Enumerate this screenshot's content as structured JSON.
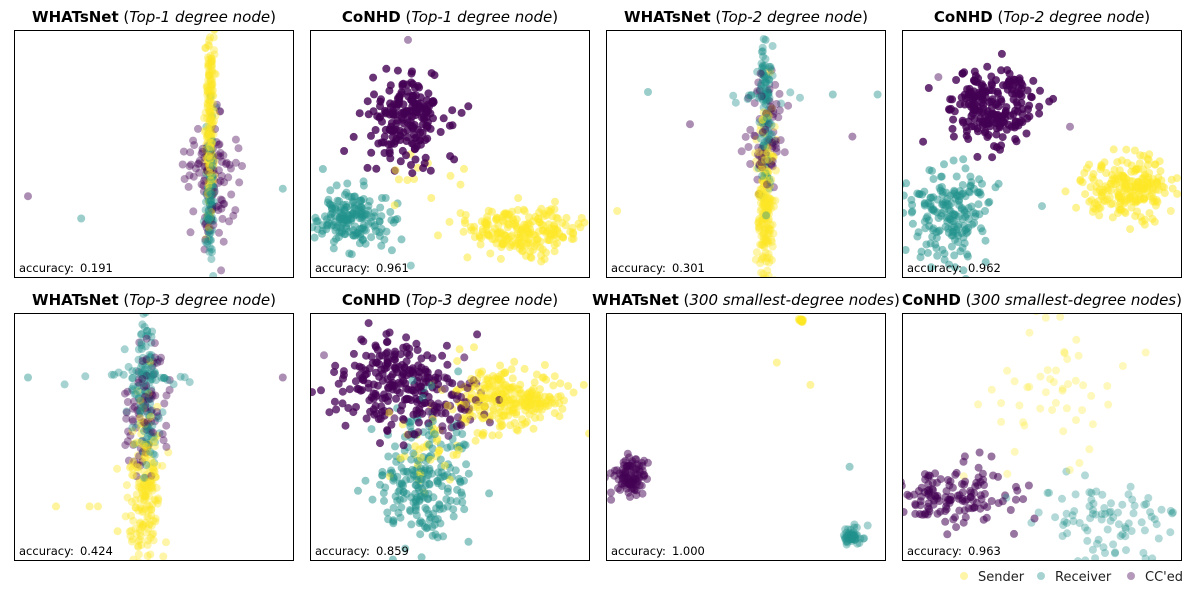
{
  "colors": {
    "sender": "#fde725",
    "receiver": "#21918c",
    "cced": "#440154"
  },
  "legend": {
    "position": "bottom-right",
    "items": [
      {
        "label": "Sender",
        "color": "#fde725"
      },
      {
        "label": "Receiver",
        "color": "#21918c"
      },
      {
        "label": "CC'ed",
        "color": "#440154"
      }
    ]
  },
  "chart_data": [
    {
      "type": "scatter",
      "title": {
        "method": "WHATsNet",
        "open": " (",
        "subset": "Top-1 degree node",
        "close": ")"
      },
      "accuracy_label": "accuracy:",
      "accuracy": "0.191",
      "xlim": [
        0,
        100
      ],
      "ylim": [
        0,
        100
      ],
      "clusters": [
        {
          "role": "cced",
          "cx": 70,
          "cy": 38,
          "sx": 4,
          "sy": 14,
          "n": 90,
          "alpha": 0.4
        },
        {
          "role": "cced",
          "cx": 70,
          "cy": 47,
          "sx": 6,
          "sy": 2,
          "n": 18,
          "alpha": 0.4
        },
        {
          "role": "receiver",
          "cx": 70,
          "cy": 35,
          "sx": 0.8,
          "sy": 14,
          "n": 110,
          "alpha": 0.4
        },
        {
          "role": "sender",
          "cx": 70,
          "cy": 58,
          "sx": 0.8,
          "sy": 18,
          "n": 170,
          "alpha": 0.4
        },
        {
          "role": "sender",
          "cx": 70,
          "cy": 85,
          "sx": 1,
          "sy": 7,
          "n": 30,
          "alpha": 0.4
        }
      ],
      "points": [
        {
          "role": "cced",
          "x": 5,
          "y": 33
        },
        {
          "role": "receiver",
          "x": 24,
          "y": 24
        },
        {
          "role": "receiver",
          "x": 96,
          "y": 36
        },
        {
          "role": "sender",
          "x": 70,
          "y": 97
        }
      ]
    },
    {
      "type": "scatter",
      "title": {
        "method": "CoNHD",
        "open": " (",
        "subset": "Top-1 degree node",
        "close": ")"
      },
      "accuracy_label": "accuracy:",
      "accuracy": "0.961",
      "xlim": [
        0,
        100
      ],
      "ylim": [
        0,
        100
      ],
      "clusters": [
        {
          "role": "cced",
          "cx": 34,
          "cy": 64,
          "sx": 7,
          "sy": 9,
          "n": 200,
          "alpha": 0.8
        },
        {
          "role": "receiver",
          "cx": 16,
          "cy": 24,
          "sx": 7,
          "sy": 6,
          "n": 180,
          "alpha": 0.5
        },
        {
          "role": "sender",
          "cx": 76,
          "cy": 19,
          "sx": 10,
          "sy": 5,
          "n": 220,
          "alpha": 0.5
        },
        {
          "role": "sender",
          "cx": 40,
          "cy": 40,
          "sx": 6,
          "sy": 6,
          "n": 12,
          "alpha": 0.5
        }
      ],
      "points": [
        {
          "role": "cced",
          "x": 35,
          "y": 96
        },
        {
          "role": "receiver",
          "x": 36,
          "y": 5
        }
      ]
    },
    {
      "type": "scatter",
      "title": {
        "method": "WHATsNet",
        "open": " (",
        "subset": "Top-2 degree node",
        "close": ")"
      },
      "accuracy_label": "accuracy:",
      "accuracy": "0.301",
      "xlim": [
        0,
        100
      ],
      "ylim": [
        0,
        100
      ],
      "clusters": [
        {
          "role": "cced",
          "cx": 57,
          "cy": 60,
          "sx": 3,
          "sy": 12,
          "n": 70,
          "alpha": 0.4
        },
        {
          "role": "receiver",
          "cx": 57,
          "cy": 68,
          "sx": 1.2,
          "sy": 16,
          "n": 110,
          "alpha": 0.4
        },
        {
          "role": "receiver",
          "cx": 54,
          "cy": 74,
          "sx": 6,
          "sy": 2,
          "n": 18,
          "alpha": 0.4
        },
        {
          "role": "sender",
          "cx": 57,
          "cy": 30,
          "sx": 1.5,
          "sy": 18,
          "n": 200,
          "alpha": 0.4
        }
      ],
      "points": [
        {
          "role": "receiver",
          "x": 15,
          "y": 75
        },
        {
          "role": "receiver",
          "x": 81,
          "y": 74
        },
        {
          "role": "receiver",
          "x": 97,
          "y": 74
        },
        {
          "role": "receiver",
          "x": 57,
          "y": 96
        },
        {
          "role": "cced",
          "x": 88,
          "y": 57
        },
        {
          "role": "cced",
          "x": 30,
          "y": 62
        },
        {
          "role": "sender",
          "x": 4,
          "y": 27
        }
      ]
    },
    {
      "type": "scatter",
      "title": {
        "method": "CoNHD",
        "open": " (",
        "subset": "Top-2 degree node",
        "close": ")"
      },
      "accuracy_label": "accuracy:",
      "accuracy": "0.962",
      "xlim": [
        0,
        100
      ],
      "ylim": [
        0,
        100
      ],
      "clusters": [
        {
          "role": "cced",
          "cx": 33,
          "cy": 70,
          "sx": 8,
          "sy": 8,
          "n": 220,
          "alpha": 0.8
        },
        {
          "role": "receiver",
          "cx": 17,
          "cy": 26,
          "sx": 7,
          "sy": 10,
          "n": 190,
          "alpha": 0.5
        },
        {
          "role": "sender",
          "cx": 82,
          "cy": 36,
          "sx": 8,
          "sy": 6,
          "n": 220,
          "alpha": 0.5
        }
      ],
      "points": [
        {
          "role": "cced",
          "x": 13,
          "y": 81
        },
        {
          "role": "cced",
          "x": 60,
          "y": 61
        },
        {
          "role": "receiver",
          "x": 50,
          "y": 29
        },
        {
          "role": "sender",
          "x": 96,
          "y": 27
        }
      ]
    },
    {
      "type": "scatter",
      "title": {
        "method": "WHATsNet",
        "open": " (",
        "subset": "Top-3 degree node",
        "close": ")"
      },
      "accuracy_label": "accuracy:",
      "accuracy": "0.424",
      "xlim": [
        0,
        100
      ],
      "ylim": [
        0,
        100
      ],
      "clusters": [
        {
          "role": "cced",
          "cx": 47,
          "cy": 62,
          "sx": 4,
          "sy": 14,
          "n": 90,
          "alpha": 0.4
        },
        {
          "role": "receiver",
          "cx": 47,
          "cy": 68,
          "sx": 2.5,
          "sy": 16,
          "n": 120,
          "alpha": 0.4
        },
        {
          "role": "receiver",
          "cx": 47,
          "cy": 74,
          "sx": 9,
          "sy": 2,
          "n": 22,
          "alpha": 0.4
        },
        {
          "role": "sender",
          "cx": 47,
          "cy": 28,
          "sx": 3,
          "sy": 16,
          "n": 190,
          "alpha": 0.4
        }
      ],
      "points": [
        {
          "role": "receiver",
          "x": 5,
          "y": 74
        },
        {
          "role": "cced",
          "x": 96,
          "y": 74
        },
        {
          "role": "sender",
          "x": 15,
          "y": 22
        },
        {
          "role": "sender",
          "x": 27,
          "y": 22
        },
        {
          "role": "sender",
          "x": 30,
          "y": 22
        },
        {
          "role": "sender",
          "x": 37,
          "y": 12
        }
      ]
    },
    {
      "type": "scatter",
      "title": {
        "method": "CoNHD",
        "open": " (",
        "subset": "Top-3 degree node",
        "close": ")"
      },
      "accuracy_label": "accuracy:",
      "accuracy": "0.859",
      "xlim": [
        0,
        100
      ],
      "ylim": [
        0,
        100
      ],
      "clusters": [
        {
          "role": "cced",
          "cx": 30,
          "cy": 72,
          "sx": 10,
          "sy": 9,
          "n": 220,
          "alpha": 0.75
        },
        {
          "role": "cced",
          "cx": 50,
          "cy": 62,
          "sx": 8,
          "sy": 6,
          "n": 60,
          "alpha": 0.6
        },
        {
          "role": "sender",
          "cx": 70,
          "cy": 65,
          "sx": 11,
          "sy": 6,
          "n": 260,
          "alpha": 0.5
        },
        {
          "role": "sender",
          "cx": 45,
          "cy": 44,
          "sx": 8,
          "sy": 8,
          "n": 40,
          "alpha": 0.5
        },
        {
          "role": "receiver",
          "cx": 40,
          "cy": 32,
          "sx": 8,
          "sy": 14,
          "n": 220,
          "alpha": 0.5
        }
      ],
      "points": [
        {
          "role": "cced",
          "x": 5,
          "y": 83
        },
        {
          "role": "receiver",
          "x": 34,
          "y": 5
        }
      ]
    },
    {
      "type": "scatter",
      "title": {
        "method": "WHATsNet",
        "open": " (",
        "subset": "300 smallest-degree nodes",
        "close": ")"
      },
      "accuracy_label": "accuracy:",
      "accuracy": "1.000",
      "xlim": [
        0,
        100
      ],
      "ylim": [
        0,
        100
      ],
      "clusters": [
        {
          "role": "cced",
          "cx": 9,
          "cy": 34,
          "sx": 3,
          "sy": 3.5,
          "n": 100,
          "alpha": 0.5
        },
        {
          "role": "receiver",
          "cx": 88,
          "cy": 10,
          "sx": 2,
          "sy": 2,
          "n": 50,
          "alpha": 0.4
        },
        {
          "role": "sender",
          "cx": 70,
          "cy": 97,
          "sx": 0.4,
          "sy": 0.4,
          "n": 15,
          "alpha": 0.5
        }
      ],
      "points": [
        {
          "role": "sender",
          "x": 61,
          "y": 80
        },
        {
          "role": "sender",
          "x": 73,
          "y": 71
        },
        {
          "role": "receiver",
          "x": 87,
          "y": 38
        }
      ]
    },
    {
      "type": "scatter",
      "title": {
        "method": "CoNHD",
        "open": " (",
        "subset": "300 smallest-degree nodes",
        "close": ")"
      },
      "accuracy_label": "accuracy:",
      "accuracy": "0.963",
      "xlim": [
        0,
        100
      ],
      "ylim": [
        0,
        100
      ],
      "clusters": [
        {
          "role": "cced",
          "cx": 18,
          "cy": 26,
          "sx": 11,
          "sy": 6,
          "n": 140,
          "alpha": 0.55
        },
        {
          "role": "receiver",
          "cx": 74,
          "cy": 15,
          "sx": 13,
          "sy": 8,
          "n": 90,
          "alpha": 0.35
        },
        {
          "role": "sender",
          "cx": 52,
          "cy": 70,
          "sx": 14,
          "sy": 14,
          "n": 50,
          "alpha": 0.3
        }
      ],
      "points": []
    }
  ]
}
